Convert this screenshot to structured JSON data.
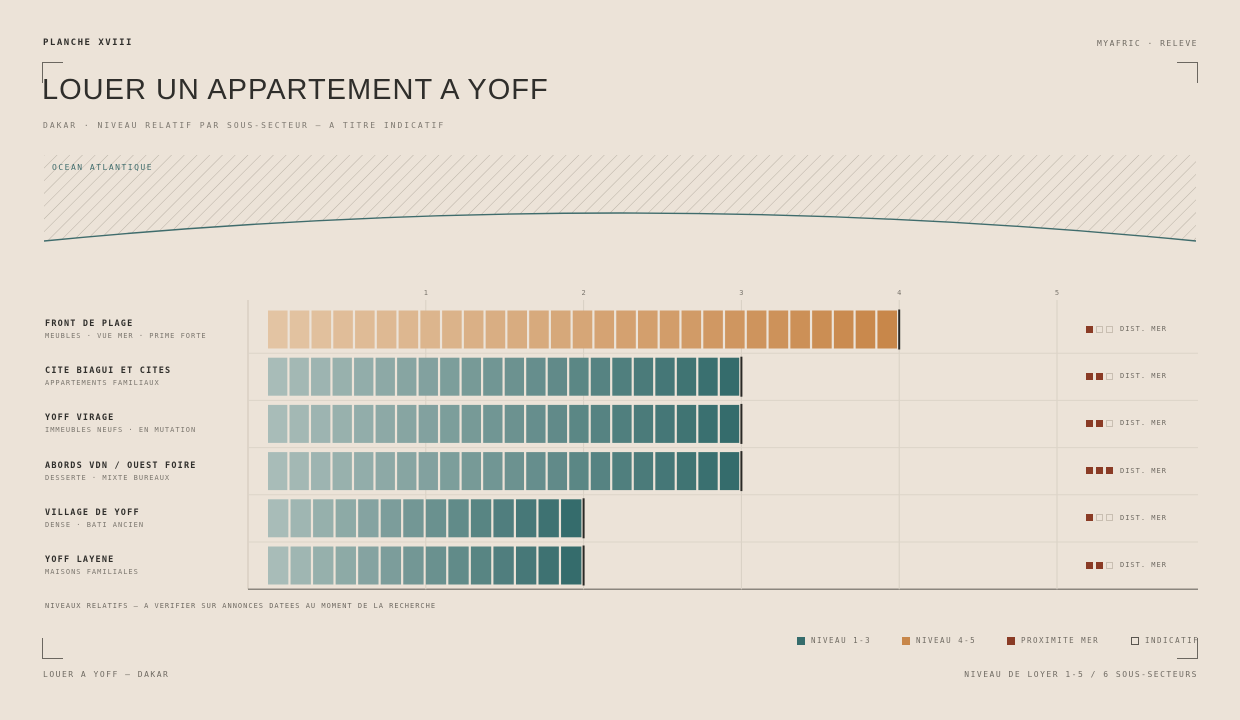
{
  "header": {
    "plate": "PLANCHE XVIII",
    "brand": "MYAFRIC · RELEVE",
    "title": "LOUER UN APPARTEMENT A YOFF",
    "subtitle": "DAKAR · NIVEAU RELATIF PAR SOUS-SECTEUR — A TITRE INDICATIF"
  },
  "map": {
    "ocean_label": "OCEAN ATLANTIQUE",
    "coast_color": "#3f6c6c"
  },
  "colors": {
    "teal": "#356c6c",
    "teal_light": "#a8bcb8",
    "orange": "#c8874a",
    "orange_light": "#e3c4a3",
    "proximity": "#8a3b25",
    "indicative": "#5a5650"
  },
  "chart_data": {
    "type": "bar",
    "orientation": "horizontal",
    "xlim": [
      0,
      5
    ],
    "ticks": [
      "1",
      "2",
      "3",
      "4",
      "5"
    ],
    "rows": [
      {
        "name": "FRONT DE PLAGE",
        "desc": "MEUBLES · VUE MER · PRIME FORTE",
        "value": 4,
        "proximity": 1,
        "prox_label": "DIST. MER"
      },
      {
        "name": "CITE BIAGUI ET CITES",
        "desc": "APPARTEMENTS FAMILIAUX",
        "value": 3,
        "proximity": 2,
        "prox_label": "DIST. MER"
      },
      {
        "name": "YOFF VIRAGE",
        "desc": "IMMEUBLES NEUFS · EN MUTATION",
        "value": 3,
        "proximity": 2,
        "prox_label": "DIST. MER"
      },
      {
        "name": "ABORDS VDN / OUEST FOIRE",
        "desc": "DESSERTE · MIXTE BUREAUX",
        "value": 3,
        "proximity": 3,
        "prox_label": "DIST. MER"
      },
      {
        "name": "VILLAGE DE YOFF",
        "desc": "DENSE · BATI ANCIEN",
        "value": 2,
        "proximity": 1,
        "prox_label": "DIST. MER"
      },
      {
        "name": "YOFF LAYENE",
        "desc": "MAISONS FAMILIALES",
        "value": 2,
        "proximity": 2,
        "prox_label": "DIST. MER"
      }
    ]
  },
  "note": "NIVEAUX RELATIFS — A VERIFIER SUR ANNONCES DATEES AU MOMENT DE LA RECHERCHE",
  "legend": {
    "level_low": "NIVEAU 1-3",
    "level_high": "NIVEAU 4-5",
    "proximity": "PROXIMITE MER",
    "indicative": "INDICATIF"
  },
  "footer": {
    "left": "LOUER A YOFF — DAKAR",
    "right": "NIVEAU DE LOYER 1-5 / 6 SOUS-SECTEURS"
  }
}
